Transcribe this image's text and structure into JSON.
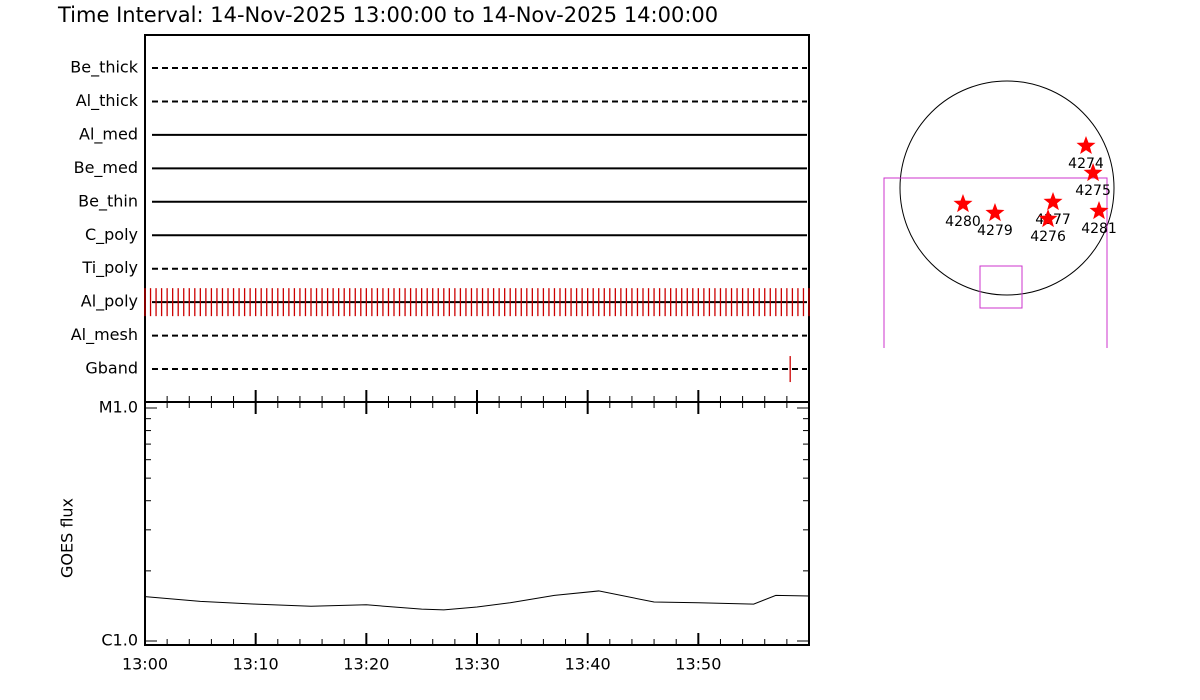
{
  "title": "Time Interval: 14-Nov-2025 13:00:00 to 14-Nov-2025 14:00:00",
  "chart_data": [
    {
      "type": "timeline",
      "color": "#cc0000",
      "xlim": [
        0,
        60
      ],
      "rows": [
        {
          "name": "Be_thick",
          "style": "dashed",
          "obs": []
        },
        {
          "name": "Al_thick",
          "style": "dashed",
          "obs": []
        },
        {
          "name": "Al_med",
          "style": "solid",
          "obs": []
        },
        {
          "name": "Be_med",
          "style": "solid",
          "obs": []
        },
        {
          "name": "Be_thin",
          "style": "solid",
          "obs": []
        },
        {
          "name": "C_poly",
          "style": "solid",
          "obs": []
        },
        {
          "name": "Ti_poly",
          "style": "dashed",
          "obs": []
        },
        {
          "name": "Al_poly",
          "style": "solid",
          "obs": [
            0,
            0.5,
            1,
            1.5,
            2,
            2.5,
            3,
            3.5,
            4,
            4.5,
            5,
            5.5,
            6,
            6.5,
            7,
            7.5,
            8,
            8.5,
            9,
            9.5,
            10,
            10.5,
            11,
            11.5,
            12,
            12.5,
            13,
            13.5,
            14,
            14.5,
            15,
            15.5,
            16,
            16.5,
            17,
            17.5,
            18,
            18.5,
            19,
            19.5,
            20,
            20.5,
            21,
            21.5,
            22,
            22.5,
            23,
            23.5,
            24,
            24.5,
            25,
            25.5,
            26,
            26.5,
            27,
            27.5,
            28,
            28.5,
            29,
            29.5,
            30,
            30.5,
            31,
            31.5,
            32,
            32.5,
            33,
            33.5,
            34,
            34.5,
            35,
            35.5,
            36,
            36.5,
            37,
            37.5,
            38,
            38.5,
            39,
            39.5,
            40,
            40.5,
            41,
            41.5,
            42,
            42.5,
            43,
            43.5,
            44,
            44.5,
            45,
            45.5,
            46,
            46.5,
            47,
            47.5,
            48,
            48.5,
            49,
            49.5,
            50,
            50.5,
            51,
            51.5,
            52,
            52.5,
            53,
            53.5,
            54,
            54.5,
            55,
            55.5,
            56,
            56.5,
            57,
            57.5,
            58,
            58.5,
            59,
            59.5,
            60
          ]
        },
        {
          "name": "Al_mesh",
          "style": "dashed",
          "obs": []
        },
        {
          "name": "Gband",
          "style": "dashed",
          "obs": [
            58.3
          ]
        }
      ]
    },
    {
      "type": "line",
      "y_label": "GOES flux",
      "color": "#000000",
      "log_y": true,
      "x": [
        0,
        5,
        10,
        15,
        20,
        25,
        27,
        30,
        33,
        37,
        41,
        46,
        50,
        55,
        57,
        60
      ],
      "values": [
        1.55e-06,
        1.48e-06,
        1.44e-06,
        1.41e-06,
        1.43e-06,
        1.37e-06,
        1.36e-06,
        1.4e-06,
        1.46e-06,
        1.57e-06,
        1.64e-06,
        1.47e-06,
        1.46e-06,
        1.44e-06,
        1.57e-06,
        1.56e-06
      ],
      "xlim": [
        0,
        60
      ],
      "xticks": [
        {
          "value": 0,
          "label": "13:00"
        },
        {
          "value": 10,
          "label": "13:10"
        },
        {
          "value": 20,
          "label": "13:20"
        },
        {
          "value": 30,
          "label": "13:30"
        },
        {
          "value": 40,
          "label": "13:40"
        },
        {
          "value": 50,
          "label": "13:50"
        }
      ],
      "xminorticks": [
        2,
        4,
        6,
        8,
        12,
        14,
        16,
        18,
        22,
        24,
        26,
        28,
        32,
        34,
        36,
        38,
        42,
        44,
        46,
        48,
        52,
        54,
        56,
        58
      ],
      "ylim": [
        1e-06,
        1e-05
      ],
      "yticks": [
        {
          "value": 1e-06,
          "label": "C1.0"
        },
        {
          "value": 1e-05,
          "label": "M1.0"
        }
      ],
      "yminorticks": [
        2e-06,
        3e-06,
        4e-06,
        5e-06,
        6e-06,
        7e-06,
        8e-06,
        9e-06
      ]
    },
    {
      "type": "scatter",
      "color": "#ff0000",
      "categories": [
        "4274",
        "4275",
        "4277",
        "4276",
        "4281",
        "4280",
        "4279"
      ],
      "x": [
        716,
        780,
        417,
        372,
        834,
        -399,
        -109
      ],
      "y": [
        381,
        136,
        -127,
        -281,
        -209,
        -145,
        -227
      ],
      "xlim": [
        -1200,
        1200
      ],
      "ylim": [
        -1200,
        1200
      ]
    }
  ]
}
